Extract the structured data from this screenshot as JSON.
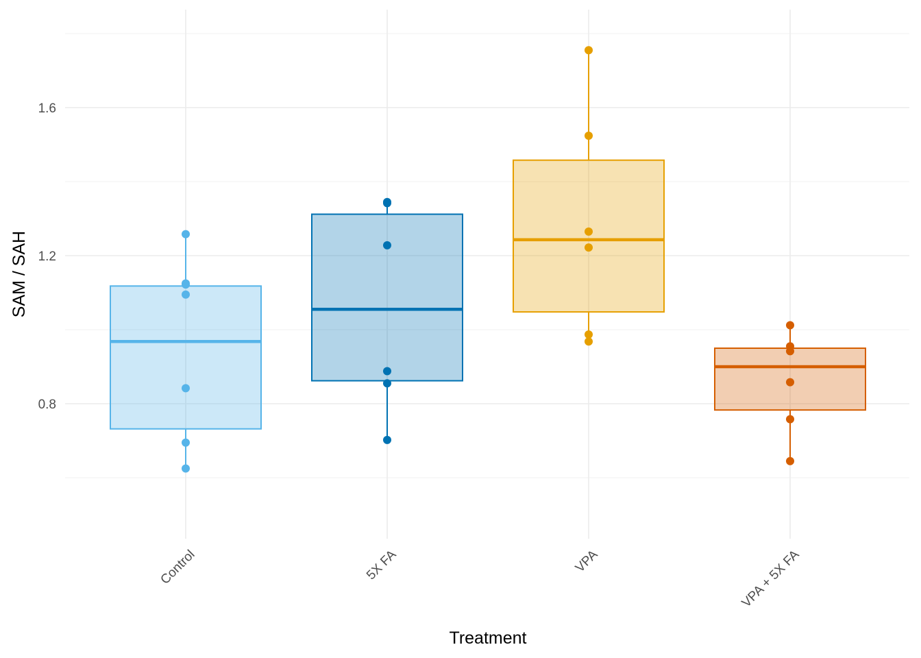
{
  "chart_data": {
    "type": "box",
    "xlabel": "Treatment",
    "ylabel": "SAM / SAH",
    "ylim": [
      0.45,
      1.85
    ],
    "yticks": [
      0.8,
      1.2,
      1.6
    ],
    "minor_yticks": [
      0.6,
      1.0,
      1.4,
      1.8
    ],
    "grid": true,
    "legend": "none",
    "categories": [
      "Control",
      "5X FA",
      "VPA",
      "VPA + 5X FA"
    ],
    "groups": [
      {
        "category": "Control",
        "color": "#56B4E9",
        "q1": 0.732,
        "median": 0.968,
        "q3": 1.118,
        "whisker_low": 0.625,
        "whisker_high": 1.258,
        "points": [
          1.258,
          1.125,
          1.122,
          1.095,
          0.842,
          0.695,
          0.625
        ]
      },
      {
        "category": "5X FA",
        "color": "#0072B2",
        "q1": 0.862,
        "median": 1.055,
        "q3": 1.312,
        "whisker_low": 0.702,
        "whisker_high": 1.345,
        "points": [
          1.345,
          1.342,
          1.228,
          0.888,
          0.855,
          0.702
        ]
      },
      {
        "category": "VPA",
        "color": "#E69F00",
        "q1": 1.048,
        "median": 1.243,
        "q3": 1.458,
        "whisker_low": 0.968,
        "whisker_high": 1.755,
        "points": [
          1.755,
          1.524,
          1.265,
          1.222,
          0.987,
          0.968
        ]
      },
      {
        "category": "VPA + 5X FA",
        "color": "#D55E00",
        "q1": 0.783,
        "median": 0.9,
        "q3": 0.95,
        "whisker_low": 0.645,
        "whisker_high": 1.012,
        "points": [
          1.012,
          0.955,
          0.942,
          0.858,
          0.758,
          0.645
        ]
      }
    ]
  }
}
